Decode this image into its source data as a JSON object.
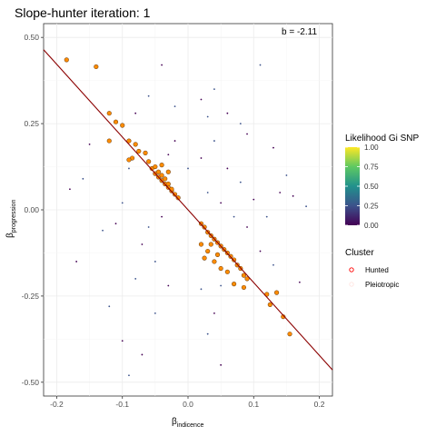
{
  "chart_data": {
    "type": "scatter",
    "title": "Slope-hunter iteration: 1",
    "xlabel": "β",
    "xlabel_sub": "indicence",
    "ylabel": "β",
    "ylabel_sub": "progression",
    "xlim": [
      -0.22,
      0.22
    ],
    "ylim": [
      -0.54,
      0.54
    ],
    "x_ticks": [
      -0.2,
      -0.1,
      0.0,
      0.1,
      0.2
    ],
    "x_tick_labels": [
      "-0.2",
      "-0.1",
      "0.0",
      "0.1",
      "0.2"
    ],
    "y_ticks": [
      0.5,
      0.25,
      0.0,
      -0.25,
      -0.5
    ],
    "y_tick_labels": [
      "0.50",
      "0.25",
      "0.00",
      "-0.25",
      "-0.50"
    ],
    "grid": true,
    "annotation": "b = -2.11",
    "regression_line": {
      "slope": -2.11,
      "intercept": 0.0,
      "color": "#8b0000"
    },
    "colorbar": {
      "title": "Likelihood Gi SNP",
      "ticks": [
        1.0,
        0.75,
        0.5,
        0.25,
        0.0
      ],
      "tick_labels": [
        "1.00",
        "0.75",
        "0.50",
        "0.25",
        "0.00"
      ],
      "colors": [
        "#440154",
        "#3b528b",
        "#21918c",
        "#5ec962",
        "#fde725"
      ]
    },
    "legend": {
      "title": "Cluster",
      "placement": "right",
      "entries": [
        {
          "label": "Hunted",
          "color": "#ff0000"
        },
        {
          "label": "Pleiotropic",
          "color": "#ffe4e1"
        }
      ]
    },
    "hunted_color": "#ff8c00",
    "series": [
      {
        "name": "Hunted",
        "points": [
          [
            -0.185,
            0.435
          ],
          [
            -0.14,
            0.415
          ],
          [
            -0.12,
            0.28
          ],
          [
            -0.11,
            0.255
          ],
          [
            -0.1,
            0.245
          ],
          [
            -0.12,
            0.2
          ],
          [
            -0.09,
            0.2
          ],
          [
            -0.08,
            0.19
          ],
          [
            -0.075,
            0.17
          ],
          [
            -0.085,
            0.15
          ],
          [
            -0.09,
            0.145
          ],
          [
            -0.065,
            0.165
          ],
          [
            -0.06,
            0.14
          ],
          [
            -0.055,
            0.12
          ],
          [
            -0.05,
            0.105
          ],
          [
            -0.045,
            0.095
          ],
          [
            -0.04,
            0.085
          ],
          [
            -0.035,
            0.075
          ],
          [
            -0.03,
            0.065
          ],
          [
            -0.025,
            0.055
          ],
          [
            -0.05,
            0.125
          ],
          [
            -0.045,
            0.11
          ],
          [
            -0.04,
            0.1
          ],
          [
            -0.035,
            0.09
          ],
          [
            -0.03,
            0.075
          ],
          [
            -0.025,
            0.06
          ],
          [
            -0.02,
            0.045
          ],
          [
            -0.015,
            0.035
          ],
          [
            0.02,
            -0.04
          ],
          [
            0.025,
            -0.05
          ],
          [
            0.03,
            -0.065
          ],
          [
            0.035,
            -0.075
          ],
          [
            0.04,
            -0.085
          ],
          [
            0.045,
            -0.095
          ],
          [
            0.05,
            -0.105
          ],
          [
            0.055,
            -0.115
          ],
          [
            0.06,
            -0.125
          ],
          [
            0.065,
            -0.135
          ],
          [
            0.07,
            -0.145
          ],
          [
            0.075,
            -0.16
          ],
          [
            0.08,
            -0.17
          ],
          [
            0.085,
            -0.19
          ],
          [
            0.09,
            -0.2
          ],
          [
            0.07,
            -0.215
          ],
          [
            0.085,
            -0.225
          ],
          [
            0.12,
            -0.245
          ],
          [
            0.135,
            -0.24
          ],
          [
            0.125,
            -0.275
          ],
          [
            0.145,
            -0.31
          ],
          [
            0.155,
            -0.36
          ],
          [
            0.02,
            -0.1
          ],
          [
            0.03,
            -0.12
          ],
          [
            0.025,
            -0.14
          ],
          [
            0.04,
            -0.15
          ],
          [
            0.05,
            -0.17
          ],
          [
            0.045,
            -0.13
          ],
          [
            0.06,
            -0.18
          ],
          [
            0.035,
            -0.1
          ],
          [
            -0.03,
            0.11
          ],
          [
            -0.04,
            0.13
          ]
        ]
      },
      {
        "name": "Pleiotropic",
        "points": [
          [
            -0.04,
            0.42
          ],
          [
            -0.06,
            0.33
          ],
          [
            -0.08,
            0.28
          ],
          [
            -0.02,
            0.3
          ],
          [
            -0.15,
            0.19
          ],
          [
            -0.16,
            0.09
          ],
          [
            -0.18,
            0.06
          ],
          [
            -0.13,
            -0.06
          ],
          [
            -0.17,
            -0.15
          ],
          [
            -0.12,
            -0.28
          ],
          [
            -0.1,
            -0.38
          ],
          [
            -0.09,
            -0.48
          ],
          [
            -0.07,
            -0.42
          ],
          [
            -0.05,
            -0.3
          ],
          [
            -0.03,
            -0.22
          ],
          [
            -0.05,
            -0.15
          ],
          [
            -0.07,
            -0.1
          ],
          [
            -0.06,
            -0.05
          ],
          [
            -0.04,
            -0.02
          ],
          [
            -0.1,
            0.02
          ],
          [
            -0.11,
            -0.04
          ],
          [
            -0.08,
            -0.2
          ],
          [
            -0.02,
            0.2
          ],
          [
            0.0,
            0.12
          ],
          [
            0.02,
            0.32
          ],
          [
            0.04,
            0.35
          ],
          [
            0.06,
            0.28
          ],
          [
            0.08,
            0.25
          ],
          [
            0.09,
            0.22
          ],
          [
            0.11,
            0.42
          ],
          [
            0.13,
            0.18
          ],
          [
            0.15,
            0.1
          ],
          [
            0.16,
            0.04
          ],
          [
            0.18,
            0.01
          ],
          [
            0.14,
            0.05
          ],
          [
            0.12,
            -0.02
          ],
          [
            0.1,
            0.03
          ],
          [
            0.08,
            0.08
          ],
          [
            0.06,
            0.12
          ],
          [
            0.04,
            0.2
          ],
          [
            0.02,
            0.15
          ],
          [
            0.03,
            0.05
          ],
          [
            0.05,
            0.02
          ],
          [
            0.07,
            -0.02
          ],
          [
            0.09,
            -0.05
          ],
          [
            0.05,
            -0.22
          ],
          [
            0.04,
            -0.3
          ],
          [
            0.03,
            -0.36
          ],
          [
            0.05,
            -0.45
          ],
          [
            0.02,
            -0.23
          ],
          [
            0.11,
            -0.12
          ],
          [
            0.13,
            -0.16
          ],
          [
            0.17,
            -0.21
          ],
          [
            0.03,
            0.27
          ],
          [
            -0.03,
            0.16
          ],
          [
            -0.09,
            0.12
          ]
        ]
      }
    ]
  }
}
